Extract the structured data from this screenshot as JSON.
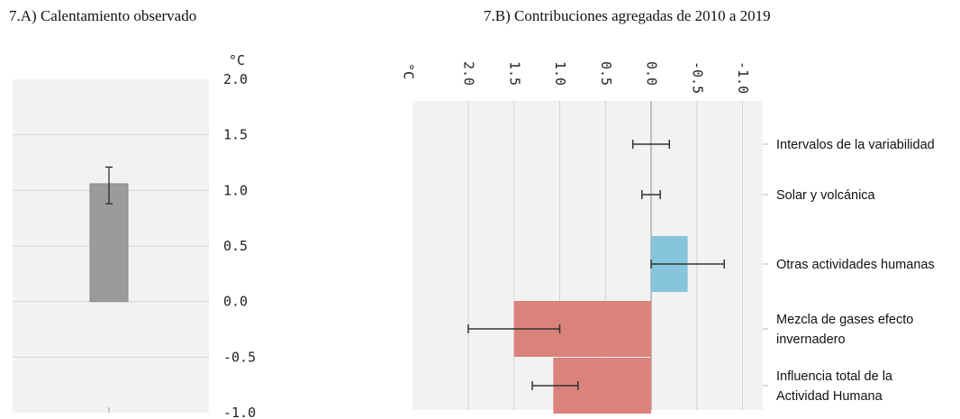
{
  "chart_data": [
    {
      "type": "bar",
      "title": "7.A) Calentamiento observado",
      "ylabel": "°C",
      "ylim": [
        -1.0,
        2.0
      ],
      "yticks": [
        "2.0",
        "1.5",
        "1.0",
        "0.5",
        "0.0",
        "-0.5",
        "-1.0"
      ],
      "categories": [
        ""
      ],
      "values": [
        1.06
      ],
      "error_low": [
        0.88
      ],
      "error_high": [
        1.21
      ],
      "grid": true,
      "colors": {
        "bar": "#9b9b9b",
        "background": "#f2f2f2",
        "grid": "#d4d4d4",
        "error": "#222222"
      }
    },
    {
      "type": "bar",
      "orientation": "horizontal",
      "title": "7.B) Contribuciones agregadas de 2010 a 2019",
      "xlabel": "°C",
      "xlim": [
        2.0,
        -1.0
      ],
      "xticks": [
        "2.0",
        "1.5",
        "1.0",
        "0.5",
        "0.0",
        "-0.5",
        "-1.0"
      ],
      "categories": [
        "Intervalos de la variabilidad",
        "Solar y volcánica",
        "Otras  actividades humanas",
        "Mezcla de gases efecto invernadero",
        "Influencia total de la Actividad Humana"
      ],
      "label_lines": [
        [
          "Intervalos de la variabilidad"
        ],
        [
          "Solar y volcánica"
        ],
        [
          "Otras  actividades humanas"
        ],
        [
          "Mezcla de gases efecto",
          "invernadero"
        ],
        [
          "Influencia total de la",
          "Actividad Humana"
        ]
      ],
      "values": [
        0.0,
        0.0,
        -0.4,
        1.5,
        1.07
      ],
      "error_low": [
        -0.2,
        -0.1,
        -0.8,
        1.0,
        0.8
      ],
      "error_high": [
        0.2,
        0.1,
        0.0,
        2.0,
        1.3
      ],
      "bar_colors": [
        "#8fc9e0",
        "#8fc9e0",
        "#87c5dc",
        "#d9837a",
        "#d9837a"
      ],
      "grid": true,
      "colors": {
        "background": "#f2f2f2",
        "grid": "#d4d4d4",
        "error": "#333333",
        "axis": "#8a8a8a"
      }
    }
  ]
}
